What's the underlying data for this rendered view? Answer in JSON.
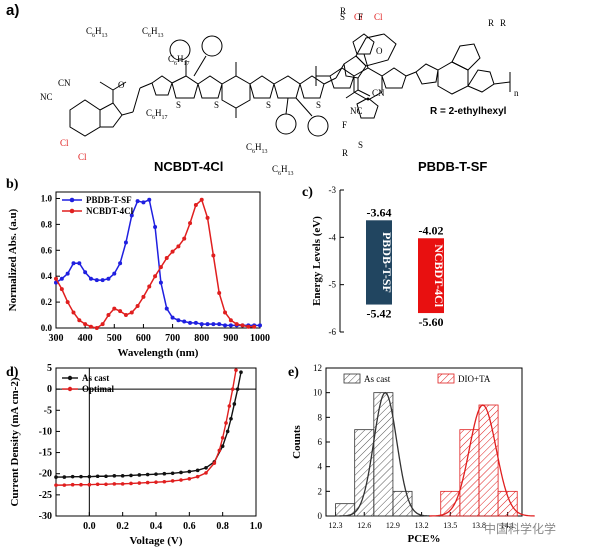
{
  "panel_a": {
    "label": "a)",
    "molecule_left": "NCBDT-4Cl",
    "molecule_right": "PBDB-T-SF",
    "r_definition": "R = 2-ethylhexyl",
    "atoms": {
      "c6h13": "C6H13",
      "c6h17": "C6H17",
      "c8h17": "C8H17",
      "cl": "Cl",
      "cn": "CN",
      "nc": "NC",
      "o": "O",
      "s": "S",
      "f": "F",
      "r": "R",
      "n": "n"
    }
  },
  "watermark": "中国科学化学",
  "chart_data": [
    {
      "panel": "b)",
      "type": "line",
      "xlabel": "Wavelength (nm)",
      "ylabel": "Normalized Abs. (a.u)",
      "xlim": [
        300,
        1000
      ],
      "ylim": [
        0,
        1.05
      ],
      "xticks": [
        300,
        400,
        500,
        600,
        700,
        800,
        900,
        1000
      ],
      "yticks": [
        0.0,
        0.2,
        0.4,
        0.6,
        0.8,
        1.0
      ],
      "legend_position": "top-left",
      "series": [
        {
          "name": "PBDB-T-SF",
          "color": "#1f1fe0",
          "x": [
            300,
            320,
            340,
            360,
            380,
            400,
            420,
            440,
            460,
            480,
            500,
            520,
            540,
            560,
            580,
            600,
            620,
            640,
            660,
            680,
            700,
            720,
            740,
            760,
            780,
            800,
            820,
            840,
            860,
            880,
            900,
            920,
            940,
            960,
            980,
            1000
          ],
          "y": [
            0.35,
            0.38,
            0.42,
            0.5,
            0.5,
            0.43,
            0.38,
            0.37,
            0.37,
            0.38,
            0.42,
            0.5,
            0.66,
            0.87,
            0.98,
            0.97,
            0.99,
            0.78,
            0.35,
            0.15,
            0.08,
            0.06,
            0.05,
            0.04,
            0.04,
            0.03,
            0.03,
            0.03,
            0.03,
            0.02,
            0.02,
            0.02,
            0.02,
            0.02,
            0.02,
            0.02
          ]
        },
        {
          "name": "NCBDT-4Cl",
          "color": "#e01f1f",
          "x": [
            300,
            320,
            340,
            360,
            380,
            400,
            420,
            440,
            460,
            480,
            500,
            520,
            540,
            560,
            580,
            600,
            620,
            640,
            660,
            680,
            700,
            720,
            740,
            760,
            780,
            800,
            820,
            840,
            860,
            880,
            900,
            920,
            940,
            960,
            980
          ],
          "y": [
            0.38,
            0.3,
            0.2,
            0.12,
            0.06,
            0.03,
            0.01,
            0.0,
            0.03,
            0.1,
            0.15,
            0.13,
            0.1,
            0.12,
            0.17,
            0.24,
            0.32,
            0.4,
            0.47,
            0.54,
            0.59,
            0.63,
            0.69,
            0.81,
            0.95,
            0.99,
            0.85,
            0.56,
            0.27,
            0.12,
            0.06,
            0.03,
            0.02,
            0.01,
            0.01
          ]
        }
      ]
    },
    {
      "panel": "c)",
      "type": "bar",
      "ylabel": "Energy Levels (eV)",
      "ylim": [
        -6,
        -3
      ],
      "yticks": [
        -6,
        -5,
        -4,
        -3
      ],
      "bars": [
        {
          "name": "PBDB-T-SF",
          "top": -3.64,
          "bottom": -5.42,
          "top_label": "-3.64",
          "bottom_label": "-5.42",
          "color": "#214560"
        },
        {
          "name": "NCBDT-4Cl",
          "top": -4.02,
          "bottom": -5.6,
          "top_label": "-4.02",
          "bottom_label": "-5.60",
          "color": "#e81010"
        }
      ]
    },
    {
      "panel": "d)",
      "type": "line",
      "xlabel": "Voltage (V)",
      "ylabel": "Current Density (mA cm-2)",
      "xlim": [
        -0.2,
        1.0
      ],
      "ylim": [
        -30,
        5
      ],
      "xticks": [
        0.0,
        0.2,
        0.4,
        0.6,
        0.8,
        1.0
      ],
      "yticks": [
        -30,
        -25,
        -20,
        -15,
        -10,
        -5,
        0,
        5
      ],
      "legend_position": "top-left",
      "series": [
        {
          "name": "As cast",
          "color": "#111111",
          "voc": 0.89,
          "x": [
            -0.2,
            -0.15,
            -0.1,
            -0.05,
            0.0,
            0.05,
            0.1,
            0.15,
            0.2,
            0.25,
            0.3,
            0.35,
            0.4,
            0.45,
            0.5,
            0.55,
            0.6,
            0.65,
            0.7,
            0.75,
            0.8,
            0.83,
            0.85,
            0.87,
            0.89,
            0.91
          ],
          "y": [
            -20.8,
            -20.8,
            -20.7,
            -20.7,
            -20.7,
            -20.6,
            -20.6,
            -20.5,
            -20.5,
            -20.4,
            -20.3,
            -20.2,
            -20.1,
            -20.0,
            -19.9,
            -19.7,
            -19.5,
            -19.2,
            -18.6,
            -17.2,
            -13.5,
            -10.0,
            -7.0,
            -3.5,
            0.0,
            4.0
          ]
        },
        {
          "name": "Optimal",
          "color": "#e01f1f",
          "voc": 0.86,
          "x": [
            -0.2,
            -0.15,
            -0.1,
            -0.05,
            0.0,
            0.05,
            0.1,
            0.15,
            0.2,
            0.25,
            0.3,
            0.35,
            0.4,
            0.45,
            0.5,
            0.55,
            0.6,
            0.65,
            0.7,
            0.75,
            0.78,
            0.8,
            0.82,
            0.84,
            0.86,
            0.88
          ],
          "y": [
            -22.7,
            -22.7,
            -22.6,
            -22.6,
            -22.6,
            -22.5,
            -22.5,
            -22.4,
            -22.4,
            -22.3,
            -22.2,
            -22.1,
            -22.0,
            -21.9,
            -21.7,
            -21.5,
            -21.2,
            -20.7,
            -19.8,
            -17.5,
            -14.5,
            -11.5,
            -8.0,
            -4.0,
            0.0,
            4.5
          ]
        }
      ]
    },
    {
      "panel": "e)",
      "type": "bar",
      "xlabel": "PCE%",
      "ylabel": "Counts",
      "ylim": [
        0,
        12
      ],
      "yticks": [
        0,
        2,
        4,
        6,
        8,
        10,
        12
      ],
      "xticks": [
        "12.3",
        "12.6",
        "12.9",
        "13.2",
        "13.5",
        "13.8",
        "14.1"
      ],
      "legend_position": "top",
      "series": [
        {
          "name": "As cast",
          "color": "#333333",
          "bins": [
            12.3,
            12.5,
            12.7,
            12.9,
            13.1
          ],
          "counts": [
            1,
            7,
            10,
            2,
            0
          ],
          "fit_mean": 12.82,
          "fit_sigma": 0.12,
          "fit_peak": 10
        },
        {
          "name": "DIO+TA",
          "color": "#e01f1f",
          "bins": [
            13.4,
            13.6,
            13.8,
            14.0
          ],
          "counts": [
            2,
            7,
            9,
            2
          ],
          "fit_mean": 13.84,
          "fit_sigma": 0.14,
          "fit_peak": 9
        }
      ]
    }
  ]
}
